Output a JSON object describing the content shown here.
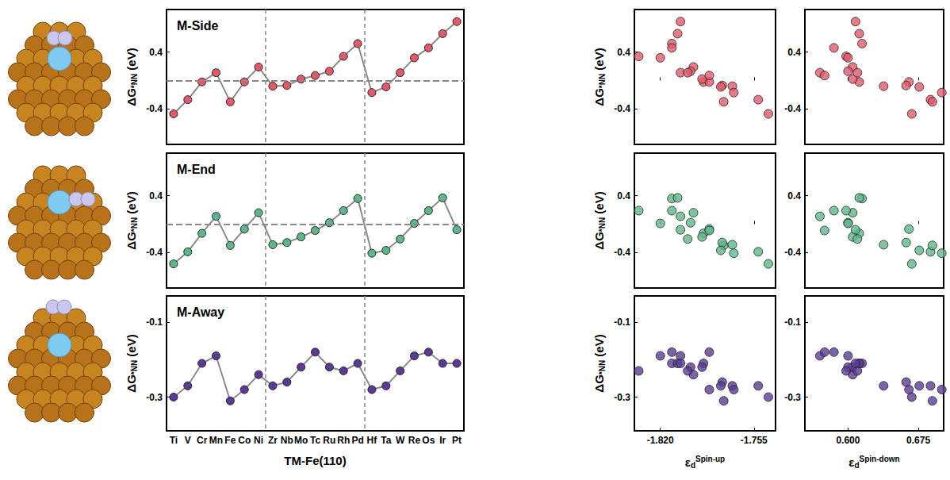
{
  "chart_data": [
    {
      "type": "line",
      "title": "M-Side",
      "categories": [
        "Ti",
        "V",
        "Cr",
        "Mn",
        "Fe",
        "Co",
        "Ni",
        "Zr",
        "Nb",
        "Mo",
        "Tc",
        "Ru",
        "Rh",
        "Pd",
        "Hf",
        "Ta",
        "W",
        "Re",
        "Os",
        "Ir",
        "Pt"
      ],
      "values": [
        -0.47,
        -0.27,
        -0.02,
        0.11,
        -0.3,
        -0.02,
        0.19,
        -0.08,
        -0.07,
        0.02,
        0.07,
        0.13,
        0.34,
        0.52,
        -0.17,
        -0.09,
        0.11,
        0.32,
        0.46,
        0.66,
        0.83
      ],
      "color": "#e25a6a",
      "marker": "circle",
      "ylim": [
        -0.9,
        1.0
      ],
      "yticks": [
        -0.4,
        0.4
      ],
      "y_label": {
        "base": "ΔG",
        "sub": "*NN",
        "suffix": " (eV)"
      },
      "reference_y": 0,
      "separators_after": [
        "Ni",
        "Pd"
      ],
      "tick_labels": "y"
    },
    {
      "type": "line",
      "title": "M-End",
      "categories": [
        "Ti",
        "V",
        "Cr",
        "Mn",
        "Fe",
        "Co",
        "Ni",
        "Zr",
        "Nb",
        "Mo",
        "Tc",
        "Ru",
        "Rh",
        "Pd",
        "Hf",
        "Ta",
        "W",
        "Re",
        "Os",
        "Ir",
        "Pt"
      ],
      "values": [
        -0.56,
        -0.39,
        -0.13,
        0.11,
        -0.3,
        -0.07,
        0.16,
        -0.29,
        -0.26,
        -0.18,
        -0.09,
        0.02,
        0.19,
        0.36,
        -0.41,
        -0.37,
        -0.21,
        0.01,
        0.19,
        0.37,
        -0.08
      ],
      "color": "#5cb88a",
      "marker": "circle",
      "ylim": [
        -0.9,
        1.0
      ],
      "yticks": [
        -0.4,
        0.4
      ],
      "y_label": {
        "base": "ΔG",
        "sub": "*NN",
        "suffix": " (eV)"
      },
      "reference_y": 0,
      "separators_after": [
        "Ni",
        "Pd"
      ],
      "tick_labels": "y"
    },
    {
      "type": "line",
      "title": "M-Away",
      "categories": [
        "Ti",
        "V",
        "Cr",
        "Mn",
        "Fe",
        "Co",
        "Ni",
        "Zr",
        "Nb",
        "Mo",
        "Tc",
        "Ru",
        "Rh",
        "Pd",
        "Hf",
        "Ta",
        "W",
        "Re",
        "Os",
        "Ir",
        "Pt"
      ],
      "values": [
        -0.3,
        -0.27,
        -0.21,
        -0.19,
        -0.31,
        -0.28,
        -0.24,
        -0.27,
        -0.26,
        -0.22,
        -0.18,
        -0.22,
        -0.23,
        -0.21,
        -0.28,
        -0.27,
        -0.23,
        -0.19,
        -0.18,
        -0.21,
        -0.21
      ],
      "color": "#5b3a96",
      "marker": "circle",
      "ylim": [
        -0.39,
        -0.03
      ],
      "yticks": [
        -0.3,
        -0.1
      ],
      "y_label": {
        "base": "ΔG",
        "sub": "*NN",
        "suffix": " (eV)"
      },
      "x_label": "TM-Fe(110)",
      "separators_after": [
        "Ni",
        "Pd"
      ],
      "tick_labels": true
    },
    {
      "type": "scatter",
      "x": [
        -1.745,
        -1.752,
        -1.79,
        -1.806,
        -1.776,
        -1.786,
        -1.797,
        -1.77,
        -1.777,
        -1.791,
        -1.786,
        -1.799,
        -1.835,
        -1.812,
        -1.769,
        -1.778,
        -1.801,
        -1.82,
        -1.812,
        -1.808,
        -1.806
      ],
      "values": [
        -0.47,
        -0.27,
        -0.02,
        0.11,
        -0.3,
        -0.02,
        0.19,
        -0.08,
        -0.07,
        0.02,
        0.07,
        0.13,
        0.34,
        0.52,
        -0.17,
        -0.09,
        0.11,
        0.32,
        0.46,
        0.66,
        0.83
      ],
      "color": "#e25a6a",
      "marker": "circle",
      "xlim": [
        -1.838,
        -1.74
      ],
      "xticks": [
        {
          "value": -1.82,
          "label": "-1.820"
        },
        {
          "value": -1.755,
          "label": "-1.755"
        }
      ],
      "ylim": [
        -0.9,
        1.0
      ],
      "yticks": [
        -0.4,
        0.4
      ],
      "y_label": {
        "base": "ΔG",
        "sub": "*NN",
        "suffix": " (eV)"
      },
      "tick_labels": "y"
    },
    {
      "type": "scatter",
      "x": [
        -1.745,
        -1.752,
        -1.79,
        -1.806,
        -1.776,
        -1.786,
        -1.797,
        -1.77,
        -1.777,
        -1.791,
        -1.786,
        -1.799,
        -1.835,
        -1.812,
        -1.769,
        -1.778,
        -1.801,
        -1.82,
        -1.812,
        -1.808,
        -1.806
      ],
      "values": [
        -0.56,
        -0.39,
        -0.13,
        0.11,
        -0.3,
        -0.07,
        0.16,
        -0.29,
        -0.26,
        -0.18,
        -0.09,
        0.02,
        0.19,
        0.36,
        -0.41,
        -0.37,
        -0.21,
        0.01,
        0.19,
        0.37,
        -0.08
      ],
      "color": "#5cb88a",
      "marker": "circle",
      "xlim": [
        -1.838,
        -1.74
      ],
      "xticks": [
        {
          "value": -1.82,
          "label": "-1.820"
        },
        {
          "value": -1.755,
          "label": "-1.755"
        }
      ],
      "ylim": [
        -0.9,
        1.0
      ],
      "yticks": [
        -0.4,
        0.4
      ],
      "y_label": {
        "base": "ΔG",
        "sub": "*NN",
        "suffix": " (eV)"
      },
      "tick_labels": "y"
    },
    {
      "type": "scatter",
      "x": [
        -1.745,
        -1.752,
        -1.79,
        -1.806,
        -1.776,
        -1.786,
        -1.797,
        -1.77,
        -1.777,
        -1.791,
        -1.786,
        -1.799,
        -1.835,
        -1.812,
        -1.769,
        -1.778,
        -1.801,
        -1.82,
        -1.812,
        -1.808,
        -1.806
      ],
      "values": [
        -0.3,
        -0.27,
        -0.21,
        -0.19,
        -0.31,
        -0.28,
        -0.24,
        -0.27,
        -0.26,
        -0.22,
        -0.18,
        -0.22,
        -0.23,
        -0.21,
        -0.28,
        -0.27,
        -0.23,
        -0.19,
        -0.18,
        -0.21,
        -0.21
      ],
      "color": "#5b3a96",
      "marker": "circle",
      "xlim": [
        -1.838,
        -1.74
      ],
      "xticks": [
        {
          "value": -1.82,
          "label": "-1.820"
        },
        {
          "value": -1.755,
          "label": "-1.755"
        }
      ],
      "ylim": [
        -0.39,
        -0.03
      ],
      "yticks": [
        -0.3,
        -0.1
      ],
      "y_label": {
        "base": "ΔG",
        "sub": "*NN",
        "suffix": " (eV)"
      },
      "x_label": {
        "base": "ε",
        "sub": "d",
        "sup": "Spin-up"
      },
      "tick_labels": true
    },
    {
      "type": "scatter",
      "x": [
        0.668,
        0.688,
        0.612,
        0.57,
        0.69,
        0.665,
        0.605,
        0.638,
        0.662,
        0.605,
        0.575,
        0.6,
        0.598,
        0.615,
        0.7,
        0.676,
        0.61,
        0.6,
        0.585,
        0.612,
        0.608
      ],
      "values": [
        -0.47,
        -0.27,
        -0.02,
        0.11,
        -0.3,
        -0.02,
        0.19,
        -0.08,
        -0.07,
        0.02,
        0.07,
        0.13,
        0.34,
        0.52,
        -0.17,
        -0.09,
        0.11,
        0.32,
        0.46,
        0.66,
        0.83
      ],
      "color": "#e25a6a",
      "marker": "circle",
      "xlim": [
        0.554,
        0.702
      ],
      "xticks": [
        {
          "value": 0.6,
          "label": "0.600"
        },
        {
          "value": 0.675,
          "label": "0.675"
        }
      ],
      "ylim": [
        -0.9,
        1.0
      ],
      "yticks": [
        -0.4,
        0.4
      ],
      "tick_labels": "y"
    },
    {
      "type": "scatter",
      "x": [
        0.668,
        0.688,
        0.612,
        0.57,
        0.69,
        0.665,
        0.605,
        0.638,
        0.662,
        0.605,
        0.575,
        0.6,
        0.598,
        0.615,
        0.7,
        0.676,
        0.61,
        0.6,
        0.585,
        0.612,
        0.608
      ],
      "values": [
        -0.56,
        -0.39,
        -0.13,
        0.11,
        -0.3,
        -0.07,
        0.16,
        -0.29,
        -0.26,
        -0.18,
        -0.09,
        0.02,
        0.19,
        0.36,
        -0.41,
        -0.37,
        -0.21,
        0.01,
        0.19,
        0.37,
        -0.08
      ],
      "color": "#5cb88a",
      "marker": "circle",
      "xlim": [
        0.554,
        0.702
      ],
      "xticks": [
        {
          "value": 0.6,
          "label": "0.600"
        },
        {
          "value": 0.675,
          "label": "0.675"
        }
      ],
      "ylim": [
        -0.9,
        1.0
      ],
      "yticks": [
        -0.4,
        0.4
      ],
      "tick_labels": "y"
    },
    {
      "type": "scatter",
      "x": [
        0.668,
        0.688,
        0.612,
        0.57,
        0.69,
        0.665,
        0.605,
        0.638,
        0.662,
        0.605,
        0.575,
        0.6,
        0.598,
        0.615,
        0.7,
        0.676,
        0.61,
        0.6,
        0.585,
        0.612,
        0.608
      ],
      "values": [
        -0.3,
        -0.27,
        -0.21,
        -0.19,
        -0.31,
        -0.28,
        -0.24,
        -0.27,
        -0.26,
        -0.22,
        -0.18,
        -0.22,
        -0.23,
        -0.21,
        -0.28,
        -0.27,
        -0.23,
        -0.19,
        -0.18,
        -0.21,
        -0.21
      ],
      "color": "#5b3a96",
      "marker": "circle",
      "xlim": [
        0.554,
        0.702
      ],
      "xticks": [
        {
          "value": 0.6,
          "label": "0.600"
        },
        {
          "value": 0.675,
          "label": "0.675"
        }
      ],
      "ylim": [
        -0.39,
        -0.03
      ],
      "yticks": [
        -0.3,
        -0.1
      ],
      "x_label": {
        "base": "ε",
        "sub": "d",
        "sup": "Spin-down"
      },
      "tick_labels": true
    }
  ]
}
